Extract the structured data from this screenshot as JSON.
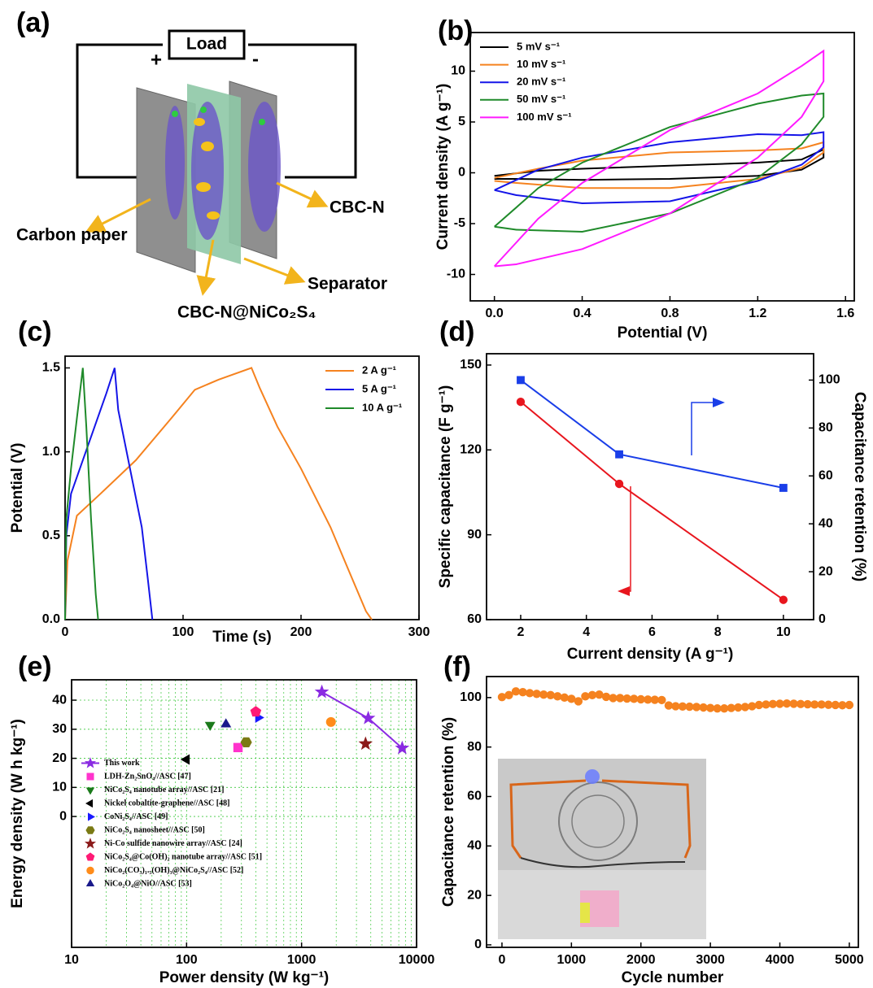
{
  "diagram": {
    "panel_label": "(a)",
    "load": "Load",
    "plus": "+",
    "minus": "-",
    "labels": [
      "Carbon paper",
      "CBC-N",
      "Separator",
      "CBC-N@NiCo₂S₄"
    ]
  },
  "chart_data": [
    {
      "type": "line",
      "panel_label": "(b)",
      "xlabel": "Potential (V)",
      "ylabel": "Current density (A g⁻¹)",
      "xlim": [
        -0.11,
        1.64
      ],
      "xticks": [
        {
          "value": 0,
          "label": "0.0"
        },
        0.4,
        0.8,
        1.2,
        1.6
      ],
      "ylim": [
        -12.6,
        13.8
      ],
      "yticks": [
        -10,
        -5,
        0,
        5,
        10
      ],
      "legend": "upper left",
      "series": [
        {
          "name": "5 mV s⁻¹",
          "color": "#000000",
          "x": [
            0,
            0.2,
            0.4,
            0.8,
            1.2,
            1.4,
            1.5,
            1.5,
            1.4,
            1.2,
            0.8,
            0.4,
            0.1,
            0
          ],
          "values": [
            -0.3,
            0.2,
            0.4,
            0.7,
            1.0,
            1.3,
            2.3,
            1.5,
            0.3,
            -0.3,
            -0.6,
            -0.7,
            -0.6,
            -0.6
          ]
        },
        {
          "name": "10 mV s⁻¹",
          "color": "#f5821f",
          "x": [
            0,
            0.2,
            0.4,
            0.8,
            1.2,
            1.4,
            1.5,
            1.5,
            1.4,
            1.2,
            0.8,
            0.4,
            0.1,
            0
          ],
          "values": [
            -0.5,
            0.4,
            1.2,
            2.0,
            2.2,
            2.4,
            3.0,
            2.0,
            0.5,
            -0.6,
            -1.5,
            -1.5,
            -1.0,
            -0.8
          ]
        },
        {
          "name": "20 mV s⁻¹",
          "color": "#1515e8",
          "x": [
            0,
            0.2,
            0.4,
            0.8,
            1.2,
            1.4,
            1.5,
            1.5,
            1.4,
            1.2,
            0.8,
            0.4,
            0.1,
            0
          ],
          "values": [
            -1.7,
            0.3,
            1.5,
            3.0,
            3.8,
            3.7,
            4.0,
            2.5,
            0.8,
            -0.8,
            -2.8,
            -3.0,
            -2.2,
            -1.7
          ]
        },
        {
          "name": "50 mV s⁻¹",
          "color": "#1f8a2a",
          "x": [
            0,
            0.2,
            0.4,
            0.8,
            1.2,
            1.4,
            1.5,
            1.5,
            1.4,
            1.2,
            0.8,
            0.4,
            0.1,
            0
          ],
          "values": [
            -5.3,
            -1.5,
            1.0,
            4.5,
            6.8,
            7.6,
            7.8,
            5.5,
            2.8,
            -0.5,
            -4.0,
            -5.8,
            -5.6,
            -5.3
          ]
        },
        {
          "name": "100 mV s⁻¹",
          "color": "#ff1aff",
          "x": [
            0,
            0.2,
            0.4,
            0.8,
            1.2,
            1.4,
            1.5,
            1.5,
            1.4,
            1.2,
            0.8,
            0.4,
            0.1,
            0
          ],
          "values": [
            -9.2,
            -4.5,
            -1.0,
            4.2,
            7.8,
            10.5,
            12.0,
            9.0,
            5.5,
            1.5,
            -4.0,
            -7.5,
            -9.0,
            -9.2
          ]
        }
      ]
    },
    {
      "type": "line",
      "panel_label": "(c)",
      "xlabel": "Time (s)",
      "ylabel": "Potential (V)",
      "xlim": [
        0,
        300
      ],
      "xticks": [
        0,
        100,
        200,
        300
      ],
      "ylim": [
        0,
        1.57
      ],
      "yticks": [
        {
          "value": 0,
          "label": "0.0"
        },
        0.5,
        {
          "value": 1,
          "label": "1.0"
        },
        1.5
      ],
      "legend": "upper right",
      "series": [
        {
          "name": "2 A g⁻¹",
          "color": "#f5821f",
          "x": [
            0,
            2,
            10,
            30,
            60,
            90,
            110,
            130,
            158,
            165,
            180,
            200,
            225,
            240,
            255,
            260
          ],
          "values": [
            0,
            0.35,
            0.62,
            0.75,
            0.95,
            1.2,
            1.37,
            1.43,
            1.5,
            1.38,
            1.15,
            0.9,
            0.55,
            0.3,
            0.05,
            0
          ]
        },
        {
          "name": "5 A g⁻¹",
          "color": "#1515e8",
          "x": [
            0,
            1,
            5,
            15,
            25,
            35,
            42,
            45,
            55,
            65,
            70,
            74
          ],
          "values": [
            0,
            0.5,
            0.75,
            0.95,
            1.15,
            1.35,
            1.5,
            1.25,
            0.9,
            0.55,
            0.25,
            0
          ]
        },
        {
          "name": "10 A g⁻¹",
          "color": "#1f8a2a",
          "x": [
            0,
            1,
            5,
            10,
            15,
            18,
            22,
            26,
            28
          ],
          "values": [
            0,
            0.6,
            0.9,
            1.2,
            1.5,
            1.15,
            0.6,
            0.15,
            0
          ]
        }
      ]
    },
    {
      "type": "line",
      "panel_label": "(d)",
      "xlabel": "Current density (A g⁻¹)",
      "ylabel": "Specific capacitance (F g⁻¹)",
      "y2label": "Capacitance retention (%)",
      "xlim": [
        0.96,
        10.92
      ],
      "xticks": [
        2,
        4,
        6,
        8,
        10
      ],
      "ylim": [
        60,
        154
      ],
      "yticks": [
        60,
        90,
        120,
        150
      ],
      "y2lim": [
        0,
        111
      ],
      "y2ticks": [
        0,
        20,
        40,
        60,
        80,
        100
      ],
      "x": [
        2,
        5,
        10
      ],
      "series": [
        {
          "color": "#e8161e",
          "marker": "circle",
          "values": [
            137,
            108,
            67
          ]
        },
        {
          "color": "#1a3ee8",
          "marker": "square",
          "axis": "y2",
          "values": [
            100,
            69,
            55
          ]
        }
      ]
    },
    {
      "type": "scatter",
      "panel_label": "(e)",
      "xlabel": "Power density (W kg⁻¹)",
      "ylabel": "Energy density (W h kg⁻¹)",
      "xscale": "log",
      "xlim": [
        10,
        10000
      ],
      "xticks": [
        10,
        100,
        1000,
        10000
      ],
      "ylim": [
        -45,
        47
      ],
      "yticks": [
        0,
        10,
        20,
        30,
        40
      ],
      "grid": true,
      "legend": "lower left",
      "series": [
        {
          "name": "This work",
          "color": "#8a2be2",
          "marker": "star",
          "line": true,
          "x": [
            1500,
            3800,
            7500
          ],
          "values": [
            42.8,
            33.8,
            23.5
          ]
        },
        {
          "name": "LDH-Zn₂SnO₄//ASC [47]",
          "color": "#ff33cc",
          "marker": "square",
          "x": [
            280
          ],
          "values": [
            23.7
          ]
        },
        {
          "name": "NiCo₂S₄ nanotube array//ASC [21]",
          "color": "#1b7a1b",
          "marker": "triangle-down",
          "x": [
            160
          ],
          "values": [
            31.5
          ]
        },
        {
          "name": "Nickel cobaltite-graphene//ASC [48]",
          "color": "#000000",
          "marker": "triangle-left",
          "x": [
            100
          ],
          "values": [
            19.6
          ]
        },
        {
          "name": "CoNi₂S₄//ASC [49]",
          "color": "#1a1aff",
          "marker": "triangle-right",
          "x": [
            420
          ],
          "values": [
            34
          ]
        },
        {
          "name": "NiCo₂S₄ nanosheet//ASC [50]",
          "color": "#7a7a14",
          "marker": "hexagon",
          "x": [
            330
          ],
          "values": [
            25.5
          ]
        },
        {
          "name": "Ni-Co sulfide nanowire array//ASC [24]",
          "color": "#8b1a1a",
          "marker": "star",
          "x": [
            3600
          ],
          "values": [
            25
          ]
        },
        {
          "name": "NiCo₂S₄@Co(OH)₂ nanotube array//ASC [51]",
          "color": "#ff1a75",
          "marker": "pentagon",
          "x": [
            400
          ],
          "values": [
            36
          ]
        },
        {
          "name": "NiCo₂(CO₃)₁.₅(OH)₃@NiCo₂S₄//ASC [52]",
          "color": "#ff8c1a",
          "marker": "circle",
          "x": [
            1800
          ],
          "values": [
            32.5
          ]
        },
        {
          "name": "NiCo₂O₄@NiO//ASC [53]",
          "color": "#1a1a8b",
          "marker": "triangle-up",
          "x": [
            220
          ],
          "values": [
            31.7
          ]
        }
      ]
    },
    {
      "type": "scatter",
      "panel_label": "(f)",
      "xlabel": "Cycle number",
      "ylabel": "Capacitance retention (%)",
      "xlim": [
        -222,
        5130
      ],
      "xticks": [
        0,
        1000,
        2000,
        3000,
        4000,
        5000
      ],
      "ylim": [
        -1,
        108.5
      ],
      "yticks": [
        0,
        20,
        40,
        60,
        80,
        100
      ],
      "series": [
        {
          "color": "#f5821f",
          "marker": "circle",
          "x": [
            0,
            100,
            200,
            300,
            400,
            500,
            600,
            700,
            800,
            900,
            1000,
            1100,
            1200,
            1300,
            1400,
            1500,
            1600,
            1700,
            1800,
            1900,
            2000,
            2100,
            2200,
            2300,
            2400,
            2500,
            2600,
            2700,
            2800,
            2900,
            3000,
            3100,
            3200,
            3300,
            3400,
            3500,
            3600,
            3700,
            3800,
            3900,
            4000,
            4100,
            4200,
            4300,
            4400,
            4500,
            4600,
            4700,
            4800,
            4900,
            5000
          ],
          "values": [
            100.2,
            101,
            102.5,
            102.2,
            101.8,
            101.5,
            101.2,
            101,
            100.5,
            100,
            99.5,
            98.5,
            100.5,
            101,
            101.2,
            100.3,
            99.8,
            99.8,
            99.6,
            99.5,
            99.3,
            99.2,
            99.1,
            99,
            96.8,
            96.5,
            96.4,
            96.3,
            96.2,
            96,
            95.8,
            95.6,
            95.6,
            95.8,
            96,
            96.2,
            96.5,
            97,
            97.2,
            97.4,
            97.5,
            97.6,
            97.5,
            97.4,
            97.3,
            97.2,
            97.2,
            97.1,
            97,
            96.9,
            97
          ]
        }
      ]
    }
  ]
}
